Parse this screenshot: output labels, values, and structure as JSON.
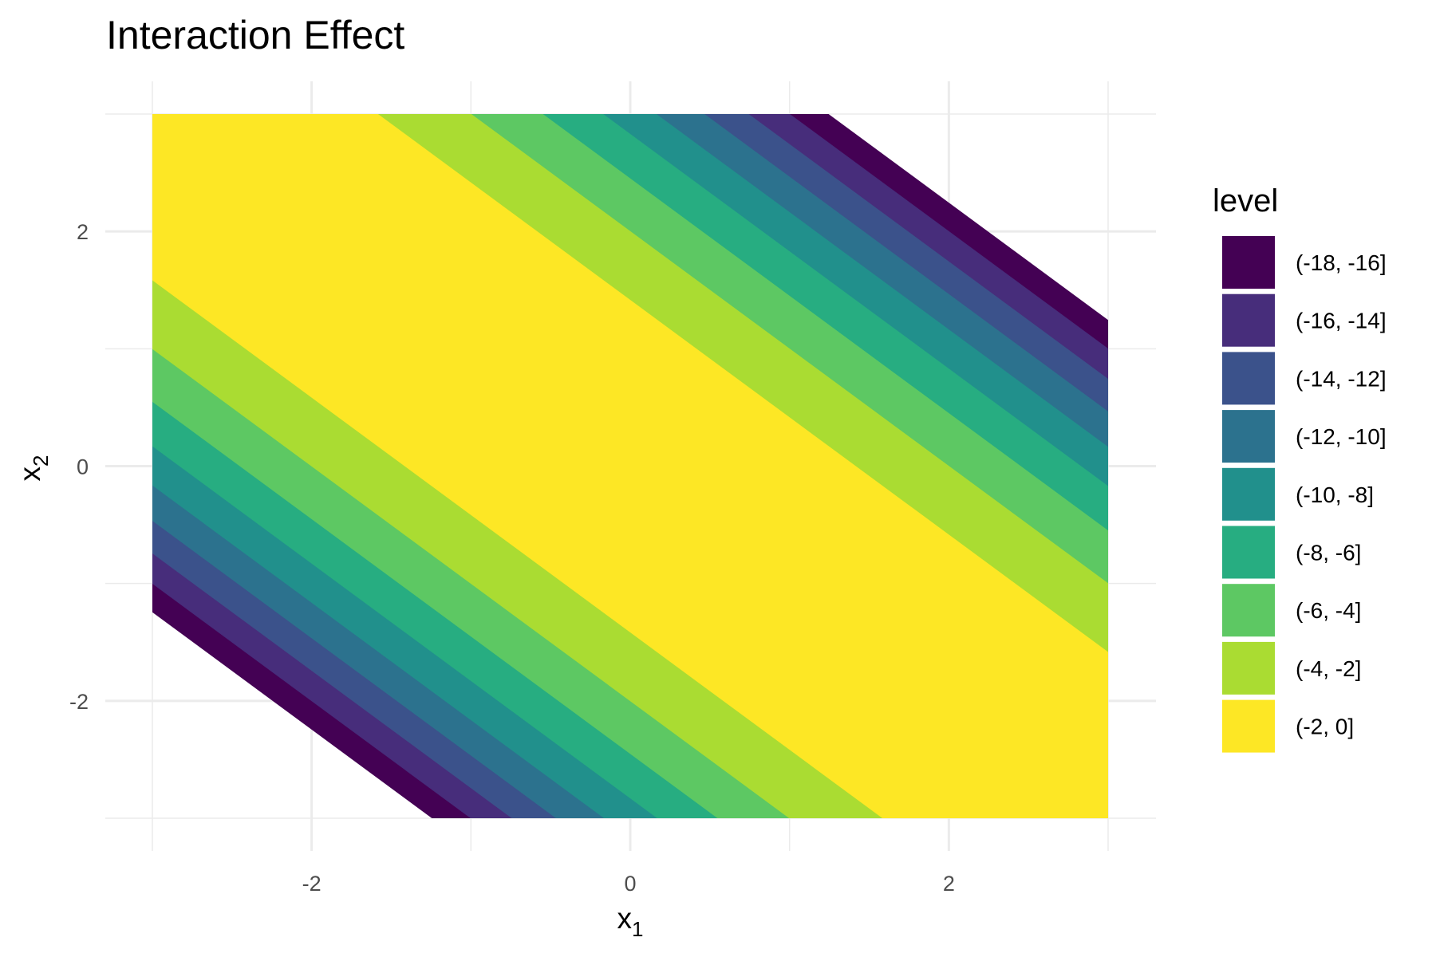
{
  "chart_data": {
    "type": "heatmap",
    "subtype": "filled-contour",
    "title": "Interaction Effect",
    "xlabel": {
      "base": "x",
      "sub": "1"
    },
    "ylabel": {
      "base": "x",
      "sub": "2"
    },
    "xlim": [
      -3,
      3
    ],
    "ylim": [
      -3,
      3
    ],
    "x_ticks": [
      -2,
      0,
      2
    ],
    "y_ticks": [
      -2,
      0,
      2
    ],
    "grid": true,
    "legend_position": "right",
    "function": "z = -(x1 + x2)^2",
    "legend": {
      "title": "level",
      "entries": [
        {
          "label": "(-18, -16]",
          "min": -18,
          "max": -16,
          "color": "#440154"
        },
        {
          "label": "(-16, -14]",
          "min": -16,
          "max": -14,
          "color": "#472D7B"
        },
        {
          "label": "(-14, -12]",
          "min": -14,
          "max": -12,
          "color": "#3B528B"
        },
        {
          "label": "(-12, -10]",
          "min": -12,
          "max": -10,
          "color": "#2C728E"
        },
        {
          "label": "(-10, -8]",
          "min": -10,
          "max": -8,
          "color": "#21908C"
        },
        {
          "label": "(-8, -6]",
          "min": -8,
          "max": -6,
          "color": "#27AD81"
        },
        {
          "label": "(-6, -4]",
          "min": -6,
          "max": -4,
          "color": "#5DC863"
        },
        {
          "label": "(-4, -2]",
          "min": -4,
          "max": -2,
          "color": "#AADC32"
        },
        {
          "label": "(-2, 0]",
          "min": -2,
          "max": 0,
          "color": "#FDE725"
        }
      ]
    }
  }
}
